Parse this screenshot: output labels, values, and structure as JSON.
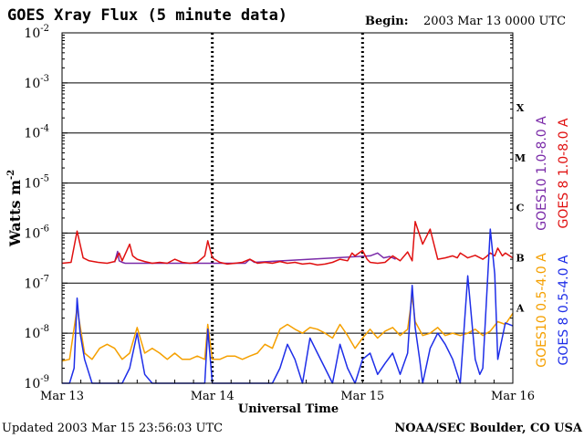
{
  "chart_data": {
    "type": "line",
    "title": "GOES Xray Flux (5 minute data)",
    "begin_label": "Begin:",
    "begin_value": "2003 Mar 13 0000 UTC",
    "xlabel": "Universal Time",
    "ylabel": "Watts m",
    "ylabel_sup": "-2",
    "x_ticks": [
      "Mar 13",
      "Mar 14",
      "Mar 15",
      "Mar 16"
    ],
    "x_range": [
      0,
      3
    ],
    "y_scale": "log",
    "ylim": [
      1e-09,
      0.01
    ],
    "y_tick_base": "10",
    "y_tick_exponents": [
      "-9",
      "-8",
      "-7",
      "-6",
      "-5",
      "-4",
      "-3",
      "-2"
    ],
    "flare_classes": [
      {
        "label": "A",
        "value": 1e-08
      },
      {
        "label": "B",
        "value": 1e-07
      },
      {
        "label": "C",
        "value": 1e-06
      },
      {
        "label": "M",
        "value": 1e-05
      },
      {
        "label": "X",
        "value": 0.0001
      }
    ],
    "series": [
      {
        "name": "GOES10 1.0-8.0 A",
        "color": "#7a2aa8",
        "x": [
          0.35,
          0.37,
          0.38,
          0.4,
          0.42,
          1.22,
          1.25,
          1.28,
          2.05,
          2.1,
          2.14,
          2.18,
          2.22
        ],
        "y": [
          2.6e-07,
          4.3e-07,
          2.8e-07,
          2.6e-07,
          2.5e-07,
          2.5e-07,
          3e-07,
          2.6e-07,
          3.5e-07,
          4e-07,
          3.2e-07,
          3.4e-07,
          3e-07
        ]
      },
      {
        "name": "GOES 8 1.0-8.0 A",
        "color": "#e01010",
        "x": [
          0.0,
          0.06,
          0.1,
          0.14,
          0.18,
          0.24,
          0.3,
          0.35,
          0.38,
          0.4,
          0.45,
          0.47,
          0.5,
          0.55,
          0.6,
          0.65,
          0.7,
          0.75,
          0.8,
          0.85,
          0.9,
          0.95,
          0.97,
          1.0,
          1.05,
          1.1,
          1.15,
          1.2,
          1.25,
          1.3,
          1.35,
          1.4,
          1.45,
          1.5,
          1.55,
          1.6,
          1.65,
          1.7,
          1.75,
          1.8,
          1.85,
          1.9,
          1.93,
          1.95,
          2.0,
          2.03,
          2.05,
          2.1,
          2.15,
          2.2,
          2.25,
          2.3,
          2.33,
          2.35,
          2.4,
          2.45,
          2.5,
          2.55,
          2.6,
          2.63,
          2.65,
          2.68,
          2.7,
          2.75,
          2.8,
          2.82,
          2.85,
          2.88,
          2.9,
          2.93,
          2.95,
          3.0
        ],
        "y": [
          2.5e-07,
          2.6e-07,
          1.1e-06,
          3.2e-07,
          2.8e-07,
          2.6e-07,
          2.5e-07,
          2.7e-07,
          4e-07,
          2.8e-07,
          6e-07,
          3.5e-07,
          3e-07,
          2.7e-07,
          2.5e-07,
          2.6e-07,
          2.5e-07,
          3e-07,
          2.6e-07,
          2.5e-07,
          2.6e-07,
          3.5e-07,
          7e-07,
          3.2e-07,
          2.6e-07,
          2.4e-07,
          2.5e-07,
          2.6e-07,
          3e-07,
          2.5e-07,
          2.6e-07,
          2.5e-07,
          2.7e-07,
          2.5e-07,
          2.6e-07,
          2.4e-07,
          2.5e-07,
          2.3e-07,
          2.4e-07,
          2.6e-07,
          3e-07,
          2.8e-07,
          4e-07,
          3.5e-07,
          4.5e-07,
          3e-07,
          2.6e-07,
          2.5e-07,
          2.6e-07,
          3.5e-07,
          2.8e-07,
          4.2e-07,
          2.8e-07,
          1.7e-06,
          6e-07,
          1.2e-06,
          3e-07,
          3.2e-07,
          3.5e-07,
          3.2e-07,
          4e-07,
          3.5e-07,
          3.2e-07,
          3.6e-07,
          3e-07,
          3.3e-07,
          4e-07,
          3.5e-07,
          5e-07,
          3.5e-07,
          4e-07,
          3.2e-07
        ]
      },
      {
        "name": "GOES10 0.5-4.0 A",
        "color": "#f5a000",
        "x": [
          0.0,
          0.05,
          0.1,
          0.15,
          0.2,
          0.25,
          0.3,
          0.35,
          0.4,
          0.45,
          0.5,
          0.55,
          0.6,
          0.65,
          0.7,
          0.75,
          0.8,
          0.85,
          0.9,
          0.95,
          0.97,
          1.0,
          1.05,
          1.1,
          1.15,
          1.2,
          1.25,
          1.3,
          1.35,
          1.4,
          1.45,
          1.5,
          1.55,
          1.6,
          1.65,
          1.7,
          1.75,
          1.8,
          1.85,
          1.9,
          1.95,
          2.0,
          2.05,
          2.1,
          2.15,
          2.2,
          2.25,
          2.3,
          2.33,
          2.35,
          2.4,
          2.45,
          2.5,
          2.55,
          2.6,
          2.65,
          2.7,
          2.75,
          2.8,
          2.85,
          2.9,
          2.95,
          3.0
        ],
        "y": [
          2.8e-09,
          3e-09,
          3.2e-08,
          4e-09,
          3e-09,
          5e-09,
          6e-09,
          5e-09,
          3e-09,
          4e-09,
          1.3e-08,
          4e-09,
          5e-09,
          4e-09,
          3e-09,
          4e-09,
          3e-09,
          3e-09,
          3.5e-09,
          3e-09,
          1.5e-08,
          3e-09,
          3e-09,
          3.5e-09,
          3.5e-09,
          3e-09,
          3.5e-09,
          4e-09,
          6e-09,
          5e-09,
          1.2e-08,
          1.5e-08,
          1.2e-08,
          1e-08,
          1.3e-08,
          1.2e-08,
          1e-08,
          8e-09,
          1.5e-08,
          9e-09,
          5e-09,
          8e-09,
          1.2e-08,
          8e-09,
          1.1e-08,
          1.3e-08,
          9e-09,
          1.2e-08,
          5.5e-08,
          1.7e-08,
          9e-09,
          1e-08,
          1.3e-08,
          9e-09,
          1e-08,
          9e-09,
          1e-08,
          1.2e-08,
          9e-09,
          1.1e-08,
          1.7e-08,
          1.5e-08,
          2.5e-08
        ]
      },
      {
        "name": "GOES 8 0.5-4.0 A",
        "color": "#1e2ee8",
        "x": [
          0.0,
          0.05,
          0.08,
          0.1,
          0.12,
          0.15,
          0.2,
          0.25,
          0.3,
          0.35,
          0.4,
          0.45,
          0.5,
          0.55,
          0.6,
          0.65,
          0.7,
          0.75,
          0.8,
          0.85,
          0.9,
          0.95,
          0.97,
          1.0,
          1.05,
          1.1,
          1.15,
          1.2,
          1.25,
          1.3,
          1.35,
          1.4,
          1.45,
          1.5,
          1.55,
          1.6,
          1.65,
          1.7,
          1.75,
          1.8,
          1.85,
          1.9,
          1.95,
          2.0,
          2.05,
          2.1,
          2.15,
          2.2,
          2.25,
          2.3,
          2.33,
          2.35,
          2.38,
          2.4,
          2.45,
          2.5,
          2.55,
          2.6,
          2.65,
          2.7,
          2.75,
          2.78,
          2.8,
          2.85,
          2.88,
          2.9,
          2.95,
          3.0
        ],
        "y": [
          1e-09,
          1e-09,
          2e-09,
          5e-08,
          1e-08,
          3e-09,
          1e-09,
          1e-09,
          1e-09,
          1e-09,
          1e-09,
          2e-09,
          1e-08,
          1.5e-09,
          1e-09,
          1e-09,
          1e-09,
          1e-09,
          1e-09,
          1e-09,
          1e-09,
          1e-09,
          1.2e-08,
          1e-09,
          1e-09,
          1e-09,
          1e-09,
          1e-09,
          1e-09,
          1e-09,
          1e-09,
          1e-09,
          2e-09,
          6e-09,
          3e-09,
          1e-09,
          8e-09,
          4e-09,
          2e-09,
          1e-09,
          6e-09,
          2e-09,
          1e-09,
          3e-09,
          4e-09,
          1.5e-09,
          2.5e-09,
          4e-09,
          1.5e-09,
          4e-09,
          9e-08,
          1.3e-08,
          3e-09,
          1e-09,
          5e-09,
          1e-08,
          6e-09,
          3e-09,
          1e-09,
          1.4e-07,
          3e-09,
          1.5e-09,
          2e-09,
          1.2e-06,
          1.5e-07,
          3e-09,
          1.6e-08,
          1.4e-08
        ]
      }
    ]
  },
  "footer": {
    "updated": "Updated 2003 Mar 15 23:56:03 UTC",
    "credit": "NOAA/SEC Boulder, CO USA"
  }
}
